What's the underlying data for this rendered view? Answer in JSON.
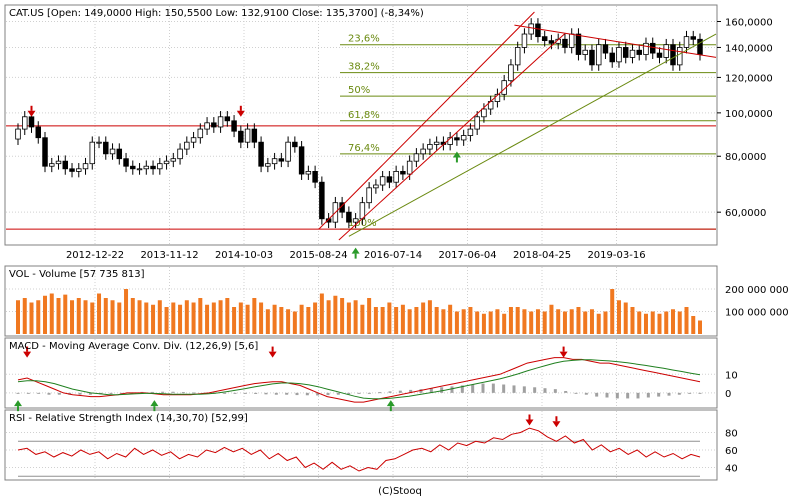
{
  "header": {
    "price": "CAT.US [Open: 149,0000  High: 150,5500  Low: 132,9100  Close: 135,3700] (-8,34%)",
    "volume": "VOL - Volume [57 735 813]",
    "macd": "MACD - Moving Average Conv. Div. (12,26,9) [5,6]",
    "rsi": "RSI - Relative Strength Index (14,30,70) [52,99]"
  },
  "footer": "(C)Stooq",
  "colors": {
    "border": "#808080",
    "grid": "#d0d0d0",
    "candle_up": "#ffffff",
    "candle_down": "#000000",
    "volume_bar": "#f07820",
    "resistance": "#cc0000",
    "fib_level": "#6a8a10",
    "signal_down": "#cc0000",
    "signal_up": "#2a9a2a",
    "macd_line": "#cc0000",
    "macd_signal": "#208020",
    "macd_hist": "#a0a0a0",
    "rsi_line": "#cc0000"
  },
  "chart_data": [
    {
      "type": "candlestick",
      "title": "CAT.US",
      "scale": "log",
      "ylim": [
        52,
        168
      ],
      "x_ticks": [
        "2012-12-22",
        "2013-11-12",
        "2014-10-03",
        "2015-08-24",
        "2016-07-14",
        "2017-06-04",
        "2018-04-25",
        "2019-03-16"
      ],
      "y_ticks": [
        {
          "value": 60,
          "label": "60,0000"
        },
        {
          "value": 80,
          "label": "80,0000"
        },
        {
          "value": 100,
          "label": "100,0000"
        },
        {
          "value": 120,
          "label": "120,0000"
        },
        {
          "value": 140,
          "label": "140,0000"
        },
        {
          "value": 160,
          "label": "160,0000"
        }
      ],
      "closes": [
        92,
        98,
        93,
        88,
        76,
        77,
        78,
        75,
        74,
        75,
        77,
        86,
        86,
        81,
        83,
        79,
        76,
        75,
        75,
        76,
        75,
        77,
        78,
        79,
        83,
        86,
        88,
        92,
        95,
        93,
        98,
        96,
        91,
        86,
        92,
        86,
        76,
        77,
        79,
        78,
        86,
        84,
        73,
        74,
        70,
        58,
        57,
        63,
        60,
        57,
        58,
        63,
        68,
        69,
        72,
        70,
        74,
        73,
        78,
        81,
        83,
        85,
        86,
        85,
        88,
        87,
        89,
        92,
        98,
        102,
        106,
        110,
        118,
        128,
        140,
        150,
        158,
        148,
        145,
        143,
        146,
        140,
        150,
        135,
        138,
        128,
        142,
        136,
        130,
        140,
        133,
        138,
        135,
        143,
        136,
        133,
        142,
        128,
        140,
        148,
        146,
        135
      ],
      "fib_levels": [
        {
          "label": "23,6%",
          "value": 142
        },
        {
          "label": "38,2%",
          "value": 123
        },
        {
          "label": "50%",
          "value": 109
        },
        {
          "label": "61,8%",
          "value": 96
        },
        {
          "label": "76,4%",
          "value": 81
        },
        {
          "label": "100%",
          "value": 55
        }
      ],
      "horizontal_lines": [
        93.5,
        55
      ]
    },
    {
      "type": "bar",
      "title": "VOL - Volume",
      "y_ticks": [
        {
          "value": 100000000,
          "label": "100 000 000"
        },
        {
          "value": 200000000,
          "label": "200 000 000"
        }
      ],
      "ylim": [
        0,
        240000000
      ],
      "values": [
        150,
        160,
        140,
        150,
        170,
        180,
        160,
        175,
        150,
        160,
        150,
        140,
        180,
        160,
        150,
        140,
        200,
        160,
        150,
        140,
        130,
        150,
        120,
        140,
        130,
        150,
        140,
        160,
        130,
        140,
        150,
        160,
        120,
        140,
        130,
        160,
        140,
        110,
        130,
        120,
        110,
        100,
        130,
        120,
        140,
        180,
        150,
        170,
        160,
        140,
        150,
        130,
        160,
        120,
        120,
        140,
        120,
        130,
        110,
        120,
        140,
        150,
        120,
        110,
        130,
        100,
        110,
        120,
        100,
        90,
        100,
        110,
        90,
        120,
        120,
        110,
        100,
        110,
        100,
        130,
        110,
        100,
        110,
        120,
        100,
        110,
        90,
        100,
        200,
        150,
        140,
        120,
        100,
        90,
        100,
        90,
        100,
        110,
        100,
        120,
        80,
        60
      ]
    },
    {
      "type": "line",
      "title": "MACD - Moving Average Conv. Div.",
      "y_ticks": [
        {
          "value": 0,
          "label": "0"
        },
        {
          "value": 10,
          "label": "10"
        }
      ],
      "ylim": [
        -6,
        22
      ],
      "series": [
        {
          "values": [
            7,
            8,
            6,
            4,
            2,
            0,
            -1,
            -1.5,
            -2,
            -2,
            -1.5,
            -1,
            0,
            0,
            0,
            -0.5,
            -1,
            -1,
            -1,
            -1,
            -0.5,
            0,
            1,
            2,
            3,
            4,
            5,
            5.5,
            6,
            6,
            5,
            4,
            2,
            0,
            -2,
            -3,
            -4,
            -5,
            -5,
            -4,
            -3,
            -2,
            -1,
            0,
            1,
            2,
            3,
            4,
            5,
            6,
            7,
            8,
            9,
            10,
            12,
            14,
            16,
            17,
            18,
            19,
            19,
            18,
            18,
            17,
            16,
            16,
            15,
            14,
            13,
            12,
            11,
            10,
            9,
            8,
            7,
            6
          ]
        },
        {
          "values": [
            6,
            6.5,
            6.5,
            6,
            5,
            3.5,
            2,
            1,
            0,
            -0.5,
            -1,
            -1,
            -0.8,
            -0.5,
            -0.3,
            -0.3,
            -0.5,
            -0.7,
            -0.8,
            -0.8,
            -0.7,
            -0.5,
            0,
            0.7,
            1.5,
            2.3,
            3.2,
            4,
            4.8,
            5.3,
            5.3,
            5,
            4.3,
            3.3,
            2,
            0.8,
            -0.5,
            -1.8,
            -2.8,
            -3.2,
            -3.2,
            -2.9,
            -2.4,
            -1.8,
            -1,
            -0.2,
            0.6,
            1.5,
            2.5,
            3.5,
            4.5,
            5.5,
            6.5,
            7.5,
            8.8,
            10.2,
            11.8,
            13.3,
            14.7,
            16,
            17,
            17.5,
            17.8,
            17.8,
            17.5,
            17.2,
            16.8,
            16.2,
            15.5,
            14.8,
            14,
            13.2,
            12.3,
            11.5,
            10.6,
            9.7
          ]
        }
      ],
      "histogram": [
        -0.5,
        -0.5,
        -0.5,
        -1,
        -1,
        -1,
        -1,
        -1,
        -0.8,
        -0.6,
        -0.4,
        0,
        0.5,
        0.5,
        0.6,
        0.6,
        0.4,
        0.2,
        0,
        0,
        0,
        -0.2,
        -0.4,
        -0.6,
        -0.8,
        -1,
        -1,
        -1.2,
        -1.3,
        -1.4,
        -1.2,
        -1,
        -0.8,
        -0.4,
        0,
        0.4,
        0.8,
        1.2,
        1.6,
        2,
        2.5,
        3,
        3.5,
        4,
        4.5,
        5,
        5,
        4.5,
        4,
        3.5,
        3,
        2.5,
        2,
        1,
        0,
        -1,
        -2,
        -2.5,
        -3,
        -3,
        -3,
        -2.5,
        -2,
        -1.5,
        -1,
        -0.5,
        -0.5
      ]
    },
    {
      "type": "line",
      "title": "RSI - Relative Strength Index",
      "y_ticks": [
        {
          "value": 40,
          "label": "40"
        },
        {
          "value": 60,
          "label": "60"
        },
        {
          "value": 80,
          "label": "80"
        }
      ],
      "ylim": [
        28,
        92
      ],
      "guide_levels": [
        30,
        70
      ],
      "series": [
        {
          "values": [
            60,
            62,
            55,
            58,
            52,
            57,
            53,
            60,
            55,
            58,
            50,
            56,
            52,
            62,
            55,
            60,
            54,
            58,
            50,
            55,
            52,
            60,
            57,
            63,
            58,
            62,
            55,
            60,
            50,
            56,
            48,
            52,
            40,
            45,
            38,
            46,
            38,
            42,
            36,
            40,
            38,
            48,
            50,
            55,
            60,
            62,
            58,
            66,
            60,
            68,
            65,
            70,
            68,
            74,
            72,
            78,
            80,
            85,
            82,
            75,
            70,
            76,
            68,
            72,
            60,
            66,
            58,
            62,
            55,
            60,
            52,
            58,
            52,
            56,
            50,
            55,
            52
          ]
        }
      ]
    }
  ]
}
